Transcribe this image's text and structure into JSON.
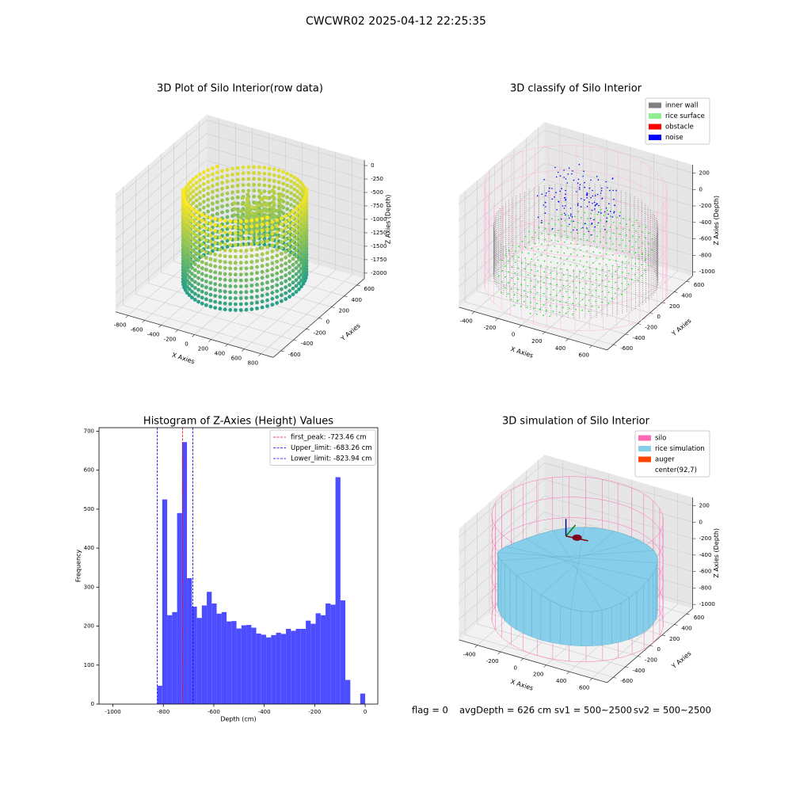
{
  "title": "CWCWR02 2025-04-12 22:25:35",
  "footer": [
    "flag = 0",
    "avgDepth = 626 cm",
    "sv1 = 500~2500",
    "sv2 = 500~2500"
  ],
  "chart_data": [
    {
      "type": "scatter3d",
      "title": "3D Plot of Silo Interior(row data)",
      "xlabel": "X Axies",
      "ylabel": "Y Axies",
      "zlabel": "Z Axies (Depth)",
      "xlim": [
        -950,
        950
      ],
      "ylim": [
        -720,
        720
      ],
      "zlim": [
        -2100,
        100
      ],
      "xticks": [
        -800,
        -600,
        -400,
        -200,
        0,
        200,
        400,
        600,
        800
      ],
      "yticks": [
        -600,
        -400,
        -200,
        0,
        200,
        400,
        600
      ],
      "zticks": [
        0,
        -250,
        -500,
        -750,
        -1000,
        -1250,
        -1500,
        -1750,
        -2000
      ]
    },
    {
      "type": "scatter3d",
      "title": "3D classify of Silo Interior",
      "xlabel": "X Axies",
      "ylabel": "Y Axies",
      "zlabel": "Z Axies (Depth)",
      "xlim": [
        -530,
        730
      ],
      "ylim": [
        -700,
        700
      ],
      "zlim": [
        -1050,
        300
      ],
      "xticks": [
        -400,
        -200,
        0,
        200,
        400,
        600
      ],
      "yticks": [
        -600,
        -400,
        -200,
        0,
        200,
        400,
        600
      ],
      "zticks": [
        200,
        0,
        -200,
        -400,
        -600,
        -800,
        -1000
      ],
      "series": [
        {
          "name": "inner wall",
          "color": "#808080"
        },
        {
          "name": "rice surface",
          "color": "#90ee90"
        },
        {
          "name": "obstacle",
          "color": "#ff0000"
        },
        {
          "name": "noise",
          "color": "#0000ff"
        }
      ]
    },
    {
      "type": "histogram",
      "title": "Histogram of Z-Axies (Height) Values",
      "xlabel": "Depth (cm)",
      "ylabel": "Frequency",
      "color": "#4d4dff",
      "bins": [
        -824,
        -804.4,
        -784.8,
        -765.1,
        -745.5,
        -725.9,
        -706.3,
        -686.7,
        -667.0,
        -647.4,
        -627.8,
        -608.2,
        -588.6,
        -568.9,
        -549.3,
        -529.7,
        -510.1,
        -490.5,
        -470.9,
        -451.2,
        -431.6,
        -412.0,
        -392.4,
        -372.8,
        -353.1,
        -333.5,
        -313.9,
        -294.3,
        -274.7,
        -255.0,
        -235.4,
        -215.8,
        -196.2,
        -176.6,
        -157.0,
        -137.3,
        -117.7,
        -98.1,
        -78.5,
        -58.9,
        -39.2,
        -19.6,
        0
      ],
      "values": [
        47,
        525,
        228,
        236,
        490,
        672,
        323,
        250,
        221,
        253,
        288,
        258,
        232,
        236,
        212,
        213,
        194,
        202,
        203,
        196,
        181,
        178,
        171,
        177,
        183,
        180,
        193,
        188,
        193,
        193,
        214,
        206,
        233,
        228,
        258,
        255,
        582,
        266,
        62,
        0,
        0,
        27
      ],
      "xlim": [
        -1055,
        50
      ],
      "ylim": [
        0,
        709
      ],
      "xticks": [
        -1000,
        -800,
        -600,
        -400,
        -200,
        0
      ],
      "yticks": [
        0,
        100,
        200,
        300,
        400,
        500,
        600,
        700
      ],
      "vlines": [
        {
          "label": "first_peak: -723.46 cm",
          "value": -723.46,
          "color": "#ff0000"
        },
        {
          "label": "Upper_limit: -683.26 cm",
          "value": -683.26,
          "color": "#0000ff"
        },
        {
          "label": "Lower_limit: -823.94 cm",
          "value": -823.94,
          "color": "#0000ff"
        }
      ]
    },
    {
      "type": "surface3d",
      "title": "3D simulation of Silo Interior",
      "xlabel": "X Axies",
      "ylabel": "Y Axies",
      "zlabel": "Z Axies (Depth)",
      "xlim": [
        -560,
        730
      ],
      "ylim": [
        -700,
        700
      ],
      "zlim": [
        -1050,
        300
      ],
      "xticks": [
        -400,
        -200,
        0,
        200,
        400,
        600
      ],
      "yticks": [
        -600,
        -400,
        -200,
        0,
        200,
        400,
        600
      ],
      "zticks": [
        200,
        0,
        -200,
        -400,
        -600,
        -800,
        -1000
      ],
      "series": [
        {
          "name": "silo",
          "color": "#ff69b4"
        },
        {
          "name": "rice simulation",
          "color": "#87ceeb"
        },
        {
          "name": "auger",
          "color": "#ff4500"
        },
        {
          "name": "center(92,7)",
          "color": "#ffffff"
        }
      ]
    }
  ]
}
